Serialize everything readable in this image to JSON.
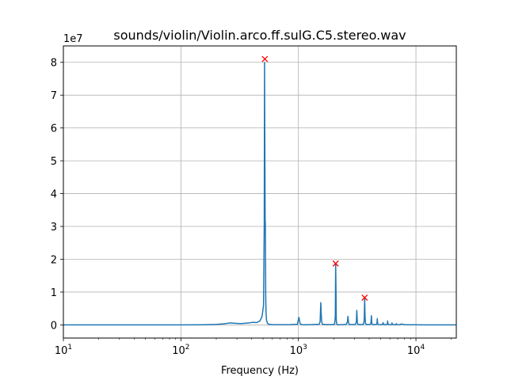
{
  "chart_data": {
    "type": "line",
    "title": "sounds/violin/Violin.arco.ff.sulG.C5.stereo.wav",
    "xlabel": "Frequency (Hz)",
    "ylabel": "",
    "xscale": "log",
    "xlim": [
      10,
      22050
    ],
    "ylim": [
      -4000000,
      85000000
    ],
    "y_multiplier_label": "1e7",
    "grid": true,
    "x_ticks": [
      {
        "value": 10,
        "base": "10",
        "exp": "1"
      },
      {
        "value": 100,
        "base": "10",
        "exp": "2"
      },
      {
        "value": 1000,
        "base": "10",
        "exp": "3"
      },
      {
        "value": 10000,
        "base": "10",
        "exp": "4"
      }
    ],
    "y_ticks": [
      {
        "value": 0,
        "label": "0"
      },
      {
        "value": 10000000,
        "label": "1"
      },
      {
        "value": 20000000,
        "label": "2"
      },
      {
        "value": 30000000,
        "label": "3"
      },
      {
        "value": 40000000,
        "label": "4"
      },
      {
        "value": 50000000,
        "label": "5"
      },
      {
        "value": 60000000,
        "label": "6"
      },
      {
        "value": 70000000,
        "label": "7"
      },
      {
        "value": 80000000,
        "label": "8"
      }
    ],
    "series": [
      {
        "color": "#1f77b4",
        "x": [
          10,
          20,
          50,
          100,
          150,
          200,
          230,
          260,
          290,
          320,
          350,
          380,
          410,
          440,
          470,
          490,
          505,
          512,
          515,
          518,
          521,
          523,
          525,
          527,
          530,
          535,
          545,
          560,
          600,
          700,
          850,
          980,
          1010,
          1025,
          1040,
          1060,
          1100,
          1300,
          1500,
          1530,
          1550,
          1565,
          1580,
          1600,
          1700,
          1900,
          2030,
          2060,
          2075,
          2090,
          2100,
          2115,
          2140,
          2200,
          2400,
          2560,
          2610,
          2640,
          2670,
          2700,
          2850,
          3050,
          3110,
          3140,
          3170,
          3200,
          3400,
          3580,
          3630,
          3660,
          3690,
          3720,
          3800,
          4100,
          4150,
          4180,
          4210,
          4250,
          4400,
          4620,
          4660,
          4690,
          4720,
          4800,
          5100,
          5200,
          5230,
          5260,
          5300,
          5600,
          5700,
          5740,
          5780,
          5900,
          6150,
          6210,
          6250,
          6300,
          6700,
          6780,
          6820,
          6900,
          7300,
          7400,
          7500,
          8000,
          9000,
          10000,
          12000,
          15000,
          22050
        ],
        "y": [
          0,
          0,
          0,
          0,
          50000,
          150000,
          300000,
          600000,
          500000,
          400000,
          500000,
          600000,
          800000,
          700000,
          1200000,
          2500000,
          6000000,
          31000000,
          80000000,
          55000000,
          32000000,
          31000000,
          20000000,
          9000000,
          4000000,
          1500000,
          500000,
          200000,
          100000,
          80000,
          100000,
          200000,
          2300000,
          1000000,
          300000,
          100000,
          50000,
          100000,
          200000,
          1000000,
          6800000,
          3000000,
          800000,
          200000,
          100000,
          100000,
          200000,
          2500000,
          18700000,
          9000000,
          1500000,
          300000,
          100000,
          50000,
          100000,
          200000,
          900000,
          2600000,
          700000,
          150000,
          100000,
          150000,
          800000,
          4400000,
          900000,
          200000,
          100000,
          200000,
          1500000,
          8100000,
          2500000,
          500000,
          100000,
          150000,
          900000,
          2800000,
          600000,
          150000,
          100000,
          150000,
          600000,
          1900000,
          400000,
          100000,
          80000,
          150000,
          500000,
          700000,
          150000,
          80000,
          200000,
          1200000,
          300000,
          80000,
          50000,
          150000,
          600000,
          150000,
          50000,
          200000,
          400000,
          100000,
          50000,
          150000,
          300000,
          60000,
          40000,
          30000,
          20000,
          10000,
          0
        ]
      }
    ],
    "peaks": [
      {
        "x": 518,
        "y": 81000000
      },
      {
        "x": 2075,
        "y": 18700000
      },
      {
        "x": 3660,
        "y": 8300000
      }
    ],
    "peak_color": "#ff0000"
  }
}
